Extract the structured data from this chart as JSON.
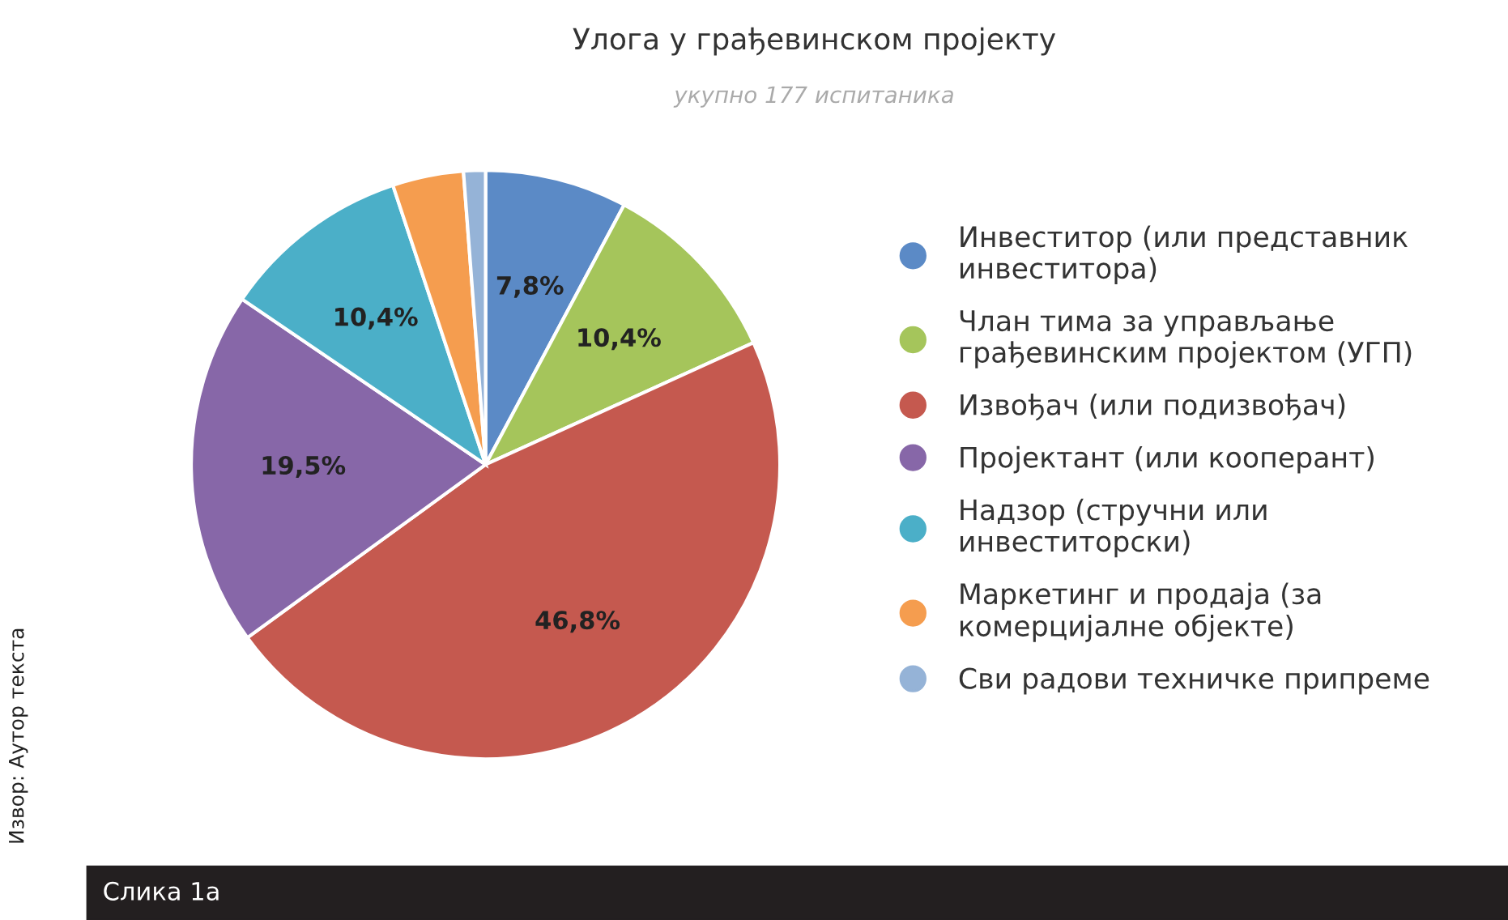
{
  "chart_data": {
    "type": "pie",
    "title": "Улога у грађевинском пројекту",
    "subtitle": "укупно 177 испитаника",
    "categories": [
      "Инвеститор (или представник\nинвеститора)",
      "Члан тима за управљање\nграђевинским пројектом (УГП)",
      "Извођач (или подизвођач)",
      "Пројектант (или кооперант)",
      "Надзор (стручни или\nинвеститорски)",
      "Маркетинг и продаја (за\nкомерцијалне објекте)",
      "Сви радови техничке припреме"
    ],
    "values": [
      7.8,
      10.4,
      46.8,
      19.5,
      10.4,
      3.9,
      1.2
    ],
    "colors": [
      "#5b8ac6",
      "#a5c55b",
      "#c5594f",
      "#8767a8",
      "#4bafc8",
      "#f59d4f",
      "#95b3d7"
    ],
    "value_labels": [
      "7,8%",
      "10,4%",
      "46,8%",
      "19,5%",
      "10,4%",
      null,
      null
    ],
    "legend": "right",
    "annotations": [
      "Извор: Аутор текста",
      "Слика 1а"
    ]
  }
}
